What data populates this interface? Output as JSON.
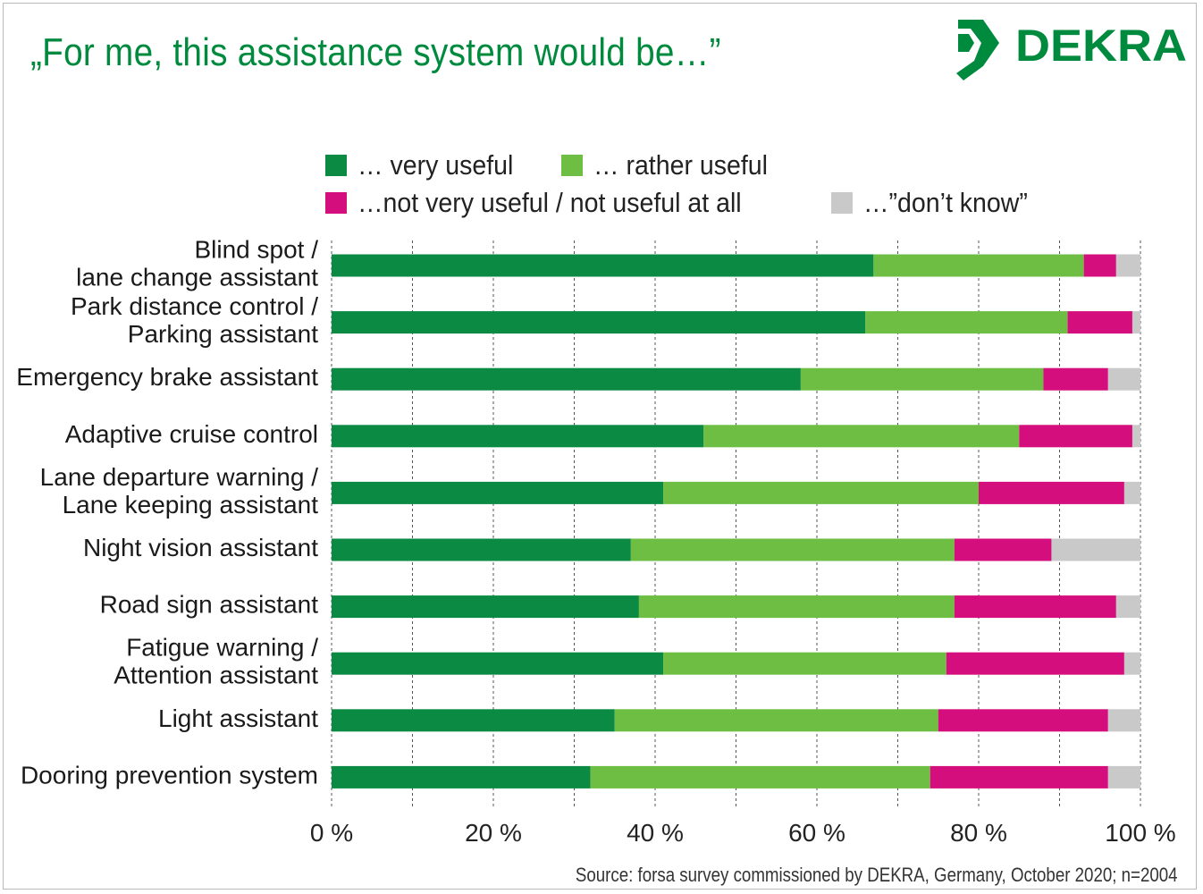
{
  "title": "„For me, this assistance system would be…”",
  "logo_text": "DEKRA",
  "source": "Source: forsa survey commissioned by DEKRA, Germany, October 2020; n=2004",
  "colors": {
    "very_useful": "#0b8a43",
    "rather_useful": "#6fbe44",
    "not_useful": "#d40f7d",
    "dont_know": "#c9c9c9",
    "brand": "#008a3e"
  },
  "chart_data": {
    "type": "bar",
    "orientation": "horizontal",
    "stacked": true,
    "xlim": [
      0,
      100
    ],
    "x_ticks": [
      "0 %",
      "20 %",
      "40 %",
      "60 %",
      "80 %",
      "100 %"
    ],
    "grid": "vertical dashed",
    "legend_position": "top",
    "categories": [
      [
        "Blind spot /",
        "lane change assistant"
      ],
      [
        "Park distance control /",
        "Parking assistant"
      ],
      [
        "Emergency brake assistant"
      ],
      [
        "Adaptive cruise control"
      ],
      [
        "Lane departure warning /",
        "Lane keeping assistant"
      ],
      [
        "Night vision assistant"
      ],
      [
        "Road sign assistant"
      ],
      [
        "Fatigue warning /",
        "Attention assistant"
      ],
      [
        "Light assistant"
      ],
      [
        "Dooring prevention system"
      ]
    ],
    "series": [
      {
        "name": "… very useful",
        "color": "#0b8a43",
        "values": [
          67,
          66,
          58,
          46,
          41,
          37,
          38,
          41,
          35,
          32
        ]
      },
      {
        "name": "… rather useful",
        "color": "#6fbe44",
        "values": [
          26,
          25,
          30,
          39,
          39,
          40,
          39,
          35,
          40,
          42
        ]
      },
      {
        "name": "…not very useful / not useful at all",
        "color": "#d40f7d",
        "values": [
          4,
          8,
          8,
          14,
          18,
          12,
          20,
          22,
          21,
          22
        ]
      },
      {
        "name": "…”don’t know”",
        "color": "#c9c9c9",
        "values": [
          3,
          1,
          4,
          1,
          2,
          11,
          3,
          2,
          4,
          4
        ]
      }
    ]
  }
}
